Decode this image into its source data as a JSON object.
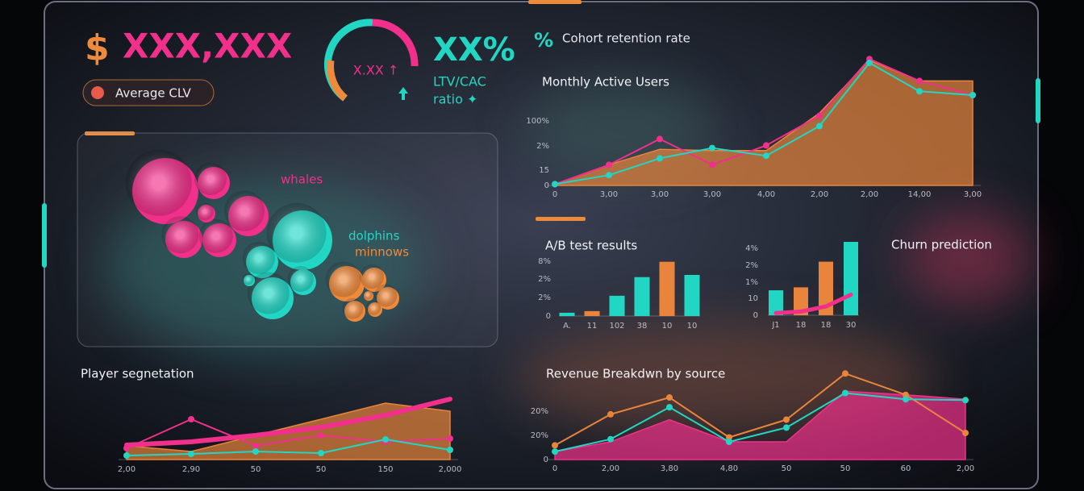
{
  "kpis": {
    "clv_currency": "$",
    "clv_value": "XXX,XXX",
    "clv_label": "Average CLV",
    "gauge_value": "X.XX ↑",
    "ratio_value": "XX%",
    "ratio_label_1": "LTV/CAC",
    "ratio_label_2": "ratio ✦",
    "cohort_icon": "%",
    "cohort_label": "Cohort retention rate"
  },
  "charts": [
    {
      "type": "line",
      "title": "Monthly Active Users",
      "categories": [
        "0",
        "3,00",
        "3,00",
        "3,00",
        "4,00",
        "2,00",
        "2,00",
        "14,00",
        "3,00"
      ],
      "ytick_labels": [
        "100%",
        "2%",
        "15",
        "0"
      ],
      "ylim": [
        0,
        100
      ],
      "series": [
        {
          "kind": "area",
          "color": "#e8843c",
          "values": [
            1,
            16,
            28,
            27,
            27,
            56,
            97,
            81,
            81
          ]
        },
        {
          "kind": "line",
          "color": "#f0308a",
          "markers": true,
          "values": [
            1,
            16,
            36,
            16,
            31,
            54,
            98,
            81,
            70
          ]
        },
        {
          "kind": "line",
          "color": "#22d6c4",
          "markers": true,
          "values": [
            1,
            8,
            21,
            29,
            23,
            46,
            95,
            73,
            70
          ]
        }
      ]
    },
    {
      "type": "line",
      "title": "Player segnetation",
      "categories": [
        "2,00",
        "2,90",
        "50",
        "50",
        "150",
        "2,000"
      ],
      "ytick_labels": [],
      "ylim": [
        0,
        100
      ],
      "series": [
        {
          "kind": "area",
          "color": "#e8843c",
          "values": [
            17,
            10,
            30,
            50,
            70,
            60
          ]
        },
        {
          "kind": "line",
          "color": "#f0308a",
          "markers": true,
          "values": [
            14,
            50,
            17,
            30,
            22,
            26
          ]
        },
        {
          "kind": "line",
          "color": "#22d6c4",
          "markers": true,
          "values": [
            5,
            7,
            10,
            8,
            25,
            12
          ]
        },
        {
          "kind": "line",
          "color": "#f0308a",
          "stroke_width": 6,
          "values": [
            18,
            22,
            30,
            40,
            55,
            75
          ]
        }
      ]
    },
    {
      "type": "bar",
      "title": "A/B test results",
      "categories": [
        "A.",
        "11",
        "102",
        "38",
        "10",
        "10"
      ],
      "ytick_labels": [
        "8%",
        "2%",
        "2%",
        "0"
      ],
      "ylim": [
        0,
        100
      ],
      "series": [
        {
          "kind": "bar",
          "colors": [
            "#22d6c4",
            "#e8843c",
            "#22d6c4",
            "#22d6c4",
            "#e8843c",
            "#22d6c4"
          ],
          "values": [
            6,
            9,
            37,
            71,
            99,
            75
          ]
        }
      ]
    },
    {
      "type": "bar",
      "title": "Churn prediction",
      "categories": [
        "J1",
        "18",
        "18",
        "30"
      ],
      "ytick_labels": [
        "4%",
        "2%",
        "1%",
        "10",
        "0"
      ],
      "ylim": [
        0,
        100
      ],
      "series": [
        {
          "kind": "bar",
          "colors": [
            "#22d6c4",
            "#e8843c",
            "#e8843c",
            "#22d6c4"
          ],
          "values": [
            34,
            38,
            73,
            100
          ]
        },
        {
          "kind": "line",
          "color": "#f0308a",
          "stroke_width": 5,
          "values": [
            3,
            5,
            12,
            28
          ]
        }
      ]
    },
    {
      "type": "line",
      "title": "Revenue Breakdwn by source",
      "categories": [
        "0",
        "2,00",
        "3,80",
        "4,80",
        "50",
        "50",
        "60",
        "2,00"
      ],
      "ytick_labels": [
        "20%",
        "20%",
        "0"
      ],
      "ylim": [
        0,
        100
      ],
      "series": [
        {
          "kind": "area",
          "color": "#f0308a",
          "values": [
            9,
            20,
            45,
            20,
            20,
            77,
            73,
            68
          ]
        },
        {
          "kind": "line",
          "color": "#e8843c",
          "markers": true,
          "values": [
            16,
            51,
            70,
            25,
            45,
            97,
            73,
            30
          ]
        },
        {
          "kind": "line",
          "color": "#22d6c4",
          "markers": true,
          "values": [
            9,
            23,
            59,
            20,
            36,
            75,
            68,
            67
          ]
        }
      ]
    },
    {
      "type": "bubble",
      "groups": [
        {
          "name": "whales",
          "color": "#f0308a",
          "sizes": [
            41,
            20,
            25,
            23,
            21,
            11
          ]
        },
        {
          "name": "dolphins",
          "color": "#22d6c4",
          "sizes": [
            37,
            20,
            26,
            16,
            7
          ]
        },
        {
          "name": "minnows",
          "color": "#ee8a3c",
          "sizes": [
            22,
            15,
            13,
            14,
            6,
            9
          ]
        }
      ]
    }
  ]
}
